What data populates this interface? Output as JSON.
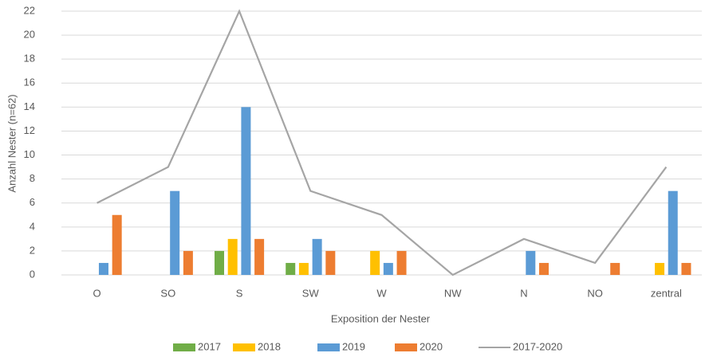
{
  "chart_data": {
    "type": "bar",
    "x_label": "Exposition der Nester",
    "y_label": "Anzahl Nester (n=62)",
    "categories": [
      "O",
      "SO",
      "S",
      "SW",
      "W",
      "NW",
      "N",
      "NO",
      "zentral"
    ],
    "series": [
      {
        "name": "2017",
        "type": "bar",
        "color": "#70ad47",
        "values": [
          0,
          0,
          2,
          1,
          0,
          0,
          0,
          0,
          0
        ]
      },
      {
        "name": "2018",
        "type": "bar",
        "color": "#ffc000",
        "values": [
          0,
          0,
          3,
          1,
          2,
          0,
          0,
          0,
          1
        ]
      },
      {
        "name": "2019",
        "type": "bar",
        "color": "#5b9bd5",
        "values": [
          1,
          7,
          14,
          3,
          1,
          0,
          2,
          0,
          7
        ]
      },
      {
        "name": "2020",
        "type": "bar",
        "color": "#ed7d31",
        "values": [
          5,
          2,
          3,
          2,
          2,
          0,
          1,
          1,
          1
        ]
      },
      {
        "name": "2017-2020",
        "type": "line",
        "color": "#a5a5a5",
        "values": [
          6,
          9,
          22,
          7,
          5,
          0,
          3,
          1,
          9
        ]
      }
    ],
    "ylim": [
      0,
      22
    ],
    "yticks": [
      0,
      2,
      4,
      6,
      8,
      10,
      12,
      14,
      16,
      18,
      20,
      22
    ],
    "grid": true,
    "legend": "bottom"
  }
}
